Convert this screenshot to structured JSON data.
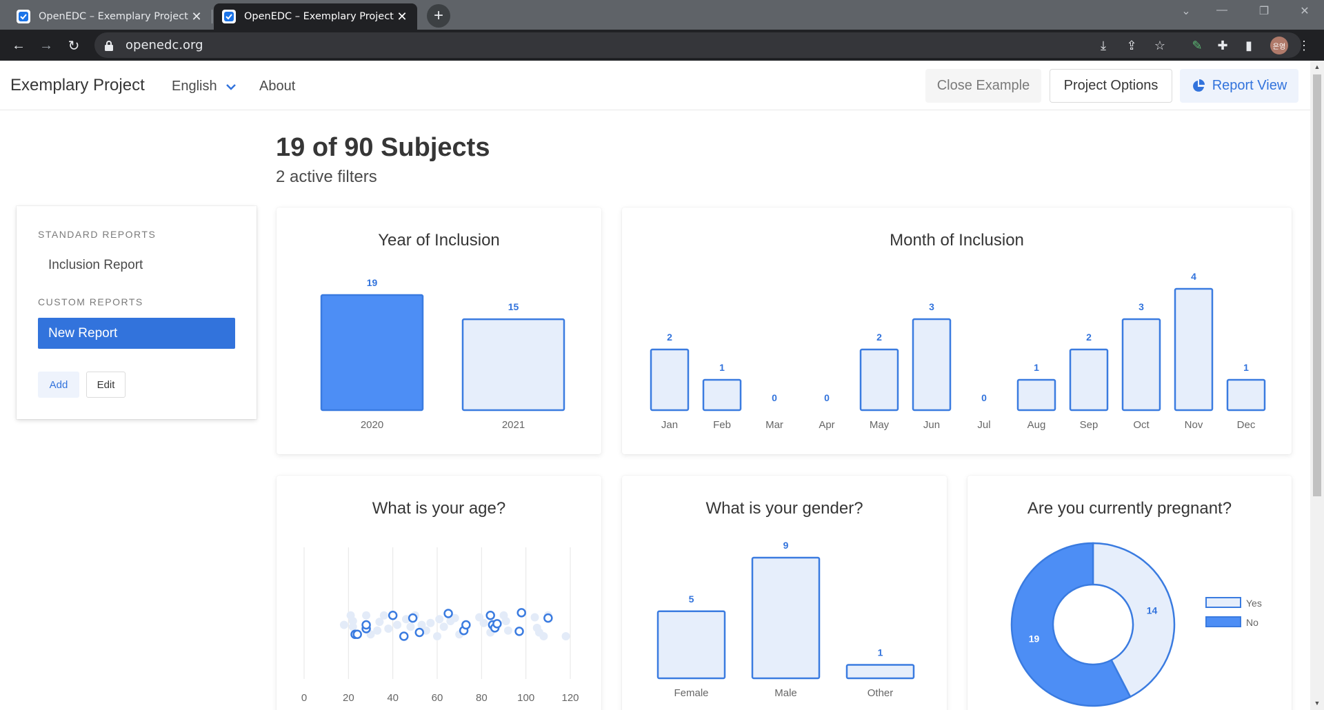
{
  "browser": {
    "tabs": [
      {
        "title": "OpenEDC – Exemplary Project",
        "active": false
      },
      {
        "title": "OpenEDC – Exemplary Project",
        "active": true
      }
    ],
    "url": "openedc.org",
    "profile_initials": "은영"
  },
  "navbar": {
    "brand": "Exemplary Project",
    "language": "English",
    "about": "About",
    "close_example": "Close Example",
    "project_options": "Project Options",
    "report_view": "Report View"
  },
  "main": {
    "heading": "19 of 90 Subjects",
    "subheading": "2 active filters"
  },
  "sidebar": {
    "standard_label": "STANDARD REPORTS",
    "standard_items": [
      "Inclusion Report"
    ],
    "custom_label": "CUSTOM REPORTS",
    "custom_items": [
      "New Report"
    ],
    "add": "Add",
    "edit": "Edit"
  },
  "colors": {
    "accent": "#3273dc",
    "bar_fill_light": "#e6eefb",
    "bar_fill_selected": "#4d8ef5",
    "bar_stroke": "#3a7be0",
    "scatter_light": "#e3ebf8"
  },
  "chart_data": [
    {
      "id": "year",
      "type": "bar",
      "title": "Year of Inclusion",
      "categories": [
        "2020",
        "2021"
      ],
      "values": [
        19,
        15
      ],
      "selected": [
        "2020"
      ]
    },
    {
      "id": "month",
      "type": "bar",
      "title": "Month of Inclusion",
      "categories": [
        "Jan",
        "Feb",
        "Mar",
        "Apr",
        "May",
        "Jun",
        "Jul",
        "Aug",
        "Sep",
        "Oct",
        "Nov",
        "Dec"
      ],
      "values": [
        2,
        1,
        0,
        0,
        2,
        3,
        0,
        1,
        2,
        3,
        4,
        1
      ],
      "selected": []
    },
    {
      "id": "age",
      "type": "scatter",
      "title": "What is your age?",
      "x_ticks": [
        0,
        20,
        40,
        60,
        80,
        100,
        120
      ],
      "xlim": [
        0,
        120
      ],
      "grid": true,
      "points_filtered": [
        {
          "x": 23,
          "y": 0.55
        },
        {
          "x": 24,
          "y": 0.55
        },
        {
          "x": 28,
          "y": 0.4
        },
        {
          "x": 28,
          "y": 0.3
        },
        {
          "x": 40,
          "y": 0.05
        },
        {
          "x": 45,
          "y": 0.6
        },
        {
          "x": 49,
          "y": 0.12
        },
        {
          "x": 52,
          "y": 0.5
        },
        {
          "x": 65,
          "y": 0.0
        },
        {
          "x": 72,
          "y": 0.45
        },
        {
          "x": 73,
          "y": 0.3
        },
        {
          "x": 84,
          "y": 0.05
        },
        {
          "x": 85,
          "y": 0.3
        },
        {
          "x": 86,
          "y": 0.38
        },
        {
          "x": 87,
          "y": 0.27
        },
        {
          "x": 97,
          "y": 0.47
        },
        {
          "x": 98,
          "y": -0.02
        },
        {
          "x": 110,
          "y": 0.12
        }
      ],
      "points_other": [
        {
          "x": 18,
          "y": 0.3
        },
        {
          "x": 21,
          "y": 0.05
        },
        {
          "x": 22,
          "y": 0.35
        },
        {
          "x": 22,
          "y": 0.2
        },
        {
          "x": 28,
          "y": 0.05
        },
        {
          "x": 30,
          "y": 0.55
        },
        {
          "x": 33,
          "y": 0.45
        },
        {
          "x": 34,
          "y": 0.22
        },
        {
          "x": 36,
          "y": 0.05
        },
        {
          "x": 38,
          "y": 0.4
        },
        {
          "x": 42,
          "y": 0.3
        },
        {
          "x": 46,
          "y": 0.15
        },
        {
          "x": 48,
          "y": 0.35
        },
        {
          "x": 50,
          "y": 0.05
        },
        {
          "x": 53,
          "y": 0.3
        },
        {
          "x": 55,
          "y": 0.45
        },
        {
          "x": 57,
          "y": 0.25
        },
        {
          "x": 60,
          "y": 0.6
        },
        {
          "x": 61,
          "y": 0.15
        },
        {
          "x": 63,
          "y": 0.35
        },
        {
          "x": 66,
          "y": 0.2
        },
        {
          "x": 68,
          "y": 0.12
        },
        {
          "x": 70,
          "y": 0.55
        },
        {
          "x": 79,
          "y": 0.1
        },
        {
          "x": 81,
          "y": 0.25
        },
        {
          "x": 84,
          "y": 0.5
        },
        {
          "x": 90,
          "y": 0.05
        },
        {
          "x": 91,
          "y": 0.2
        },
        {
          "x": 92,
          "y": 0.45
        },
        {
          "x": 104,
          "y": 0.1
        },
        {
          "x": 105,
          "y": 0.38
        },
        {
          "x": 106,
          "y": 0.5
        },
        {
          "x": 108,
          "y": 0.6
        },
        {
          "x": 110,
          "y": 0.05
        },
        {
          "x": 118,
          "y": 0.6
        }
      ]
    },
    {
      "id": "gender",
      "type": "bar",
      "title": "What is your gender?",
      "categories": [
        "Female",
        "Male",
        "Other"
      ],
      "values": [
        5,
        9,
        1
      ],
      "selected": []
    },
    {
      "id": "pregnant",
      "type": "pie",
      "title": "Are you currently pregnant?",
      "labels": [
        "Yes",
        "No"
      ],
      "values": [
        14,
        19
      ],
      "selected": [
        "No"
      ],
      "legend": "right"
    }
  ]
}
